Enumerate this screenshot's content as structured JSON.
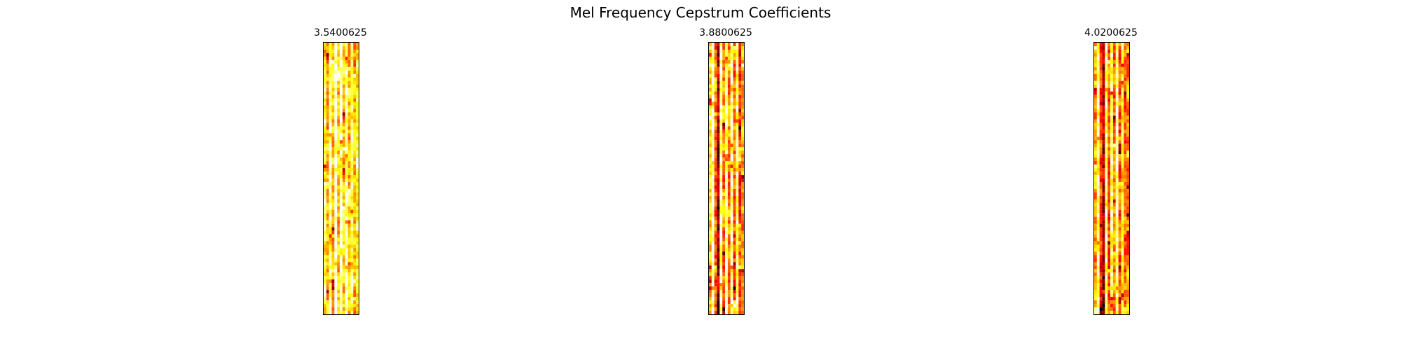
{
  "figure": {
    "title": "Mel Frequency Cepstrum Coefficients"
  },
  "chart_data": [
    {
      "type": "heatmap",
      "title": "3.5400625",
      "xlabel": "",
      "ylabel": "",
      "colormap": "hot",
      "axes_visible": false,
      "grid": false,
      "legend": "none",
      "cols": 13,
      "rows": 78,
      "value_range": [
        0,
        1
      ],
      "column_profile": [
        0.78,
        0.66,
        0.9,
        0.68,
        0.97,
        0.66,
        0.92,
        0.68,
        0.94,
        0.65,
        0.82,
        0.62,
        0.74
      ],
      "seed": 11
    },
    {
      "type": "heatmap",
      "title": "3.8800625",
      "xlabel": "",
      "ylabel": "",
      "colormap": "hot",
      "axes_visible": false,
      "grid": false,
      "legend": "none",
      "cols": 13,
      "rows": 78,
      "value_range": [
        0,
        1
      ],
      "column_profile": [
        0.72,
        0.95,
        0.52,
        0.22,
        0.9,
        0.55,
        0.88,
        0.56,
        0.93,
        0.52,
        0.82,
        0.46,
        0.6
      ],
      "seed": 23
    },
    {
      "type": "heatmap",
      "title": "4.0200625",
      "xlabel": "",
      "ylabel": "",
      "colormap": "hot",
      "axes_visible": false,
      "grid": false,
      "legend": "none",
      "cols": 13,
      "rows": 78,
      "value_range": [
        0,
        1
      ],
      "column_profile": [
        0.6,
        0.85,
        0.45,
        0.25,
        0.84,
        0.5,
        0.8,
        0.55,
        0.86,
        0.5,
        0.76,
        0.5,
        0.58
      ],
      "seed": 37
    }
  ]
}
